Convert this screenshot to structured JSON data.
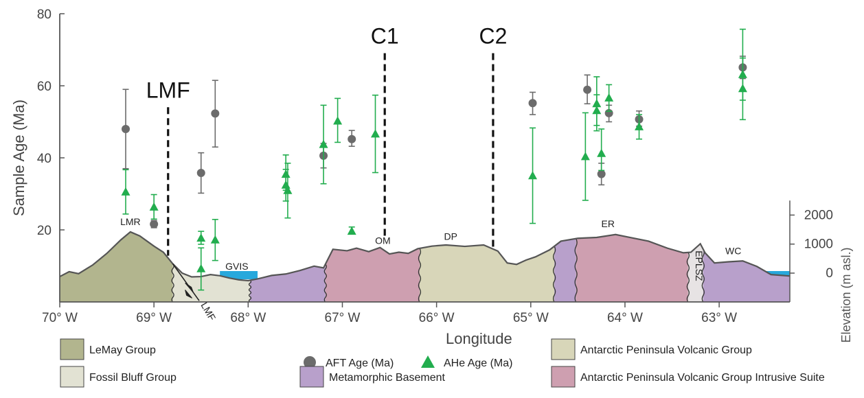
{
  "chart_data": {
    "type": "scatter",
    "xlabel": "Longitude",
    "ylabel": "Sample Age (Ma)",
    "y2label": "Elevation (m asl.)",
    "xlim": [
      -70.0,
      -62.25
    ],
    "ylim": [
      0,
      80
    ],
    "y2lim": [
      -1000,
      2500
    ],
    "x_ticks": [
      -70,
      -69,
      -68,
      -67,
      -66,
      -65,
      -64,
      -63
    ],
    "x_tick_labels": [
      "70° W",
      "69° W",
      "68° W",
      "67° W",
      "66° W",
      "65° W",
      "64° W",
      "63° W"
    ],
    "y_ticks": [
      20,
      40,
      60,
      80
    ],
    "y_tick_labels": [
      "20",
      "40",
      "60",
      "80"
    ],
    "y2_ticks": [
      0,
      1000,
      2000
    ],
    "y2_tick_labels": [
      "0",
      "1000",
      "2000"
    ],
    "grid": false,
    "series": [
      {
        "name": "AFT Age (Ma)",
        "marker": "circle",
        "color": "#6b6b6b",
        "points": [
          {
            "x": -69.3,
            "y": 48.0,
            "err": [
              37.0,
              59.0
            ]
          },
          {
            "x": -69.0,
            "y": 21.6,
            "err": [
              20.6,
              22.6
            ]
          },
          {
            "x": -68.5,
            "y": 35.8,
            "err": [
              30.2,
              41.4
            ]
          },
          {
            "x": -68.35,
            "y": 52.3,
            "err": [
              43.0,
              61.5
            ]
          },
          {
            "x": -67.2,
            "y": 40.6,
            "err": [
              37.2,
              44.0
            ]
          },
          {
            "x": -66.9,
            "y": 45.2,
            "err": [
              43.2,
              47.6
            ]
          },
          {
            "x": -64.98,
            "y": 55.2,
            "err": [
              52.0,
              58.2
            ]
          },
          {
            "x": -64.4,
            "y": 58.9,
            "err": [
              55.0,
              63.0
            ]
          },
          {
            "x": -64.25,
            "y": 35.5,
            "err": [
              32.5,
              38.5
            ]
          },
          {
            "x": -64.17,
            "y": 52.4,
            "err": [
              50.0,
              54.6
            ]
          },
          {
            "x": -63.85,
            "y": 50.7,
            "err": [
              48.8,
              53.0
            ]
          },
          {
            "x": -62.75,
            "y": 65.1,
            "err": [
              62.0,
              68.2
            ]
          }
        ]
      },
      {
        "name": "AHe Age (Ma)",
        "marker": "triangle",
        "color": "#22ad4e",
        "points": [
          {
            "x": -69.3,
            "y": 30.5,
            "err": [
              24.4,
              36.7
            ]
          },
          {
            "x": -69.0,
            "y": 26.3,
            "err": [
              23.0,
              29.8
            ]
          },
          {
            "x": -68.5,
            "y": 17.7,
            "err": [
              16.0,
              19.6
            ]
          },
          {
            "x": -68.5,
            "y": 9.2,
            "err": [
              3.3,
              15.0
            ]
          },
          {
            "x": -68.35,
            "y": 17.2,
            "err": [
              11.5,
              22.9
            ]
          },
          {
            "x": -67.6,
            "y": 35.4,
            "err": [
              31.0,
              40.8
            ]
          },
          {
            "x": -67.6,
            "y": 32.4,
            "err": [
              28.0,
              36.8
            ]
          },
          {
            "x": -67.58,
            "y": 30.9,
            "err": [
              23.3,
              38.5
            ]
          },
          {
            "x": -67.2,
            "y": 43.7,
            "err": [
              32.8,
              54.6
            ]
          },
          {
            "x": -67.05,
            "y": 50.2,
            "err": [
              44.3,
              56.5
            ]
          },
          {
            "x": -66.9,
            "y": 19.6,
            "err": [
              19.0,
              20.8
            ]
          },
          {
            "x": -66.65,
            "y": 46.6,
            "err": [
              35.9,
              57.4
            ]
          },
          {
            "x": -64.98,
            "y": 35.0,
            "err": [
              21.8,
              48.3
            ]
          },
          {
            "x": -64.42,
            "y": 40.3,
            "err": [
              28.2,
              52.5
            ]
          },
          {
            "x": -64.3,
            "y": 55.0,
            "err": [
              47.5,
              62.5
            ]
          },
          {
            "x": -64.3,
            "y": 53.1,
            "err": [
              49.0,
              57.5
            ]
          },
          {
            "x": -64.25,
            "y": 41.2,
            "err": [
              36.5,
              48.0
            ]
          },
          {
            "x": -64.17,
            "y": 56.6,
            "err": [
              52.9,
              60.3
            ]
          },
          {
            "x": -63.85,
            "y": 48.6,
            "err": [
              45.2,
              52.0
            ]
          },
          {
            "x": -62.75,
            "y": 63.1,
            "err": [
              56.0,
              75.7
            ]
          },
          {
            "x": -62.75,
            "y": 59.2,
            "err": [
              50.6,
              67.7
            ]
          }
        ]
      }
    ],
    "profile": {
      "topography": [
        [
          -70.0,
          -120
        ],
        [
          -69.9,
          50
        ],
        [
          -69.8,
          -20
        ],
        [
          -69.65,
          280
        ],
        [
          -69.5,
          680
        ],
        [
          -69.35,
          1150
        ],
        [
          -69.25,
          1420
        ],
        [
          -69.15,
          1280
        ],
        [
          -69.0,
          930
        ],
        [
          -68.9,
          720
        ],
        [
          -68.8,
          320
        ],
        [
          -68.7,
          0
        ],
        [
          -68.6,
          -130
        ],
        [
          -68.5,
          -120
        ],
        [
          -68.4,
          -50
        ],
        [
          -68.3,
          -90
        ],
        [
          -68.2,
          -170
        ],
        [
          -68.1,
          -230
        ],
        [
          -68.0,
          -260
        ],
        [
          -67.9,
          -200
        ],
        [
          -67.75,
          -80
        ],
        [
          -67.6,
          -30
        ],
        [
          -67.45,
          90
        ],
        [
          -67.3,
          240
        ],
        [
          -67.2,
          180
        ],
        [
          -67.1,
          820
        ],
        [
          -66.95,
          770
        ],
        [
          -66.85,
          860
        ],
        [
          -66.72,
          740
        ],
        [
          -66.6,
          880
        ],
        [
          -66.5,
          660
        ],
        [
          -66.4,
          720
        ],
        [
          -66.3,
          680
        ],
        [
          -66.2,
          840
        ],
        [
          -66.05,
          930
        ],
        [
          -65.9,
          970
        ],
        [
          -65.7,
          920
        ],
        [
          -65.5,
          970
        ],
        [
          -65.35,
          760
        ],
        [
          -65.25,
          350
        ],
        [
          -65.15,
          300
        ],
        [
          -65.05,
          450
        ],
        [
          -64.95,
          560
        ],
        [
          -64.8,
          800
        ],
        [
          -64.68,
          1100
        ],
        [
          -64.5,
          1200
        ],
        [
          -64.3,
          1230
        ],
        [
          -64.1,
          1330
        ],
        [
          -63.95,
          1230
        ],
        [
          -63.75,
          1100
        ],
        [
          -63.55,
          860
        ],
        [
          -63.38,
          700
        ],
        [
          -63.3,
          720
        ],
        [
          -63.2,
          1010
        ],
        [
          -63.15,
          700
        ],
        [
          -63.05,
          350
        ],
        [
          -62.9,
          390
        ],
        [
          -62.75,
          420
        ],
        [
          -62.6,
          230
        ],
        [
          -62.45,
          -50
        ],
        [
          -62.25,
          -100
        ]
      ],
      "base_elevation": -1000,
      "units": [
        {
          "name": "LeMay Group",
          "color": "#b2b58e",
          "x_range": [
            -70.0,
            -68.8
          ]
        },
        {
          "name": "Fossil Bluff Group",
          "color": "#e2e2d3",
          "x_range": [
            -68.8,
            -67.98
          ]
        },
        {
          "name": "Metamorphic Basement",
          "color": "#b8a0cb",
          "x_range": [
            -67.98,
            -67.18
          ]
        },
        {
          "name": "Antarctic Peninsula Volcanic Group Intrusive Suite",
          "color": "#ce9fb0",
          "x_range": [
            -67.18,
            -66.18
          ]
        },
        {
          "name": "Antarctic Peninsula Volcanic Group",
          "color": "#d8d6b9",
          "x_range": [
            -66.18,
            -64.75
          ]
        },
        {
          "name": "Metamorphic Basement",
          "color": "#b8a0cb",
          "x_range": [
            -64.75,
            -64.52
          ]
        },
        {
          "name": "Antarctic Peninsula Volcanic Group Intrusive Suite",
          "color": "#ce9fb0",
          "x_range": [
            -64.52,
            -63.33
          ]
        },
        {
          "name": "Antarctic Peninsula Volcanic Group",
          "color": "#e7e3e4",
          "x_range": [
            -63.33,
            -63.17
          ]
        },
        {
          "name": "Metamorphic Basement",
          "color": "#b8a0cb",
          "x_range": [
            -63.17,
            -62.25
          ]
        }
      ],
      "water": [
        {
          "x_range": [
            -68.3,
            -67.9
          ]
        },
        {
          "x_range": [
            -62.55,
            -62.25
          ]
        }
      ],
      "labels": [
        {
          "text": "LMR",
          "x": -69.25,
          "elev": 1650
        },
        {
          "text": "GVIS",
          "x": -68.12,
          "elev": 120
        },
        {
          "text": "OM",
          "x": -66.57,
          "elev": 1000
        },
        {
          "text": "DP",
          "x": -65.85,
          "elev": 1150
        },
        {
          "text": "ER",
          "x": -64.18,
          "elev": 1580
        },
        {
          "text": "WC",
          "x": -62.85,
          "elev": 650
        },
        {
          "text": "EPLSZ",
          "x": -63.25,
          "elev": 250
        }
      ]
    },
    "fault_lines": [
      {
        "label": "LMF",
        "x": -68.85,
        "y_top": 67,
        "elev_bottom": 600
      },
      {
        "label": "C1",
        "x": -66.55,
        "y_top": 82,
        "elev_bottom": 1200
      },
      {
        "label": "C2",
        "x": -65.4,
        "y_top": 82,
        "elev_bottom": 800
      }
    ],
    "fault_trace_label": "LMF"
  },
  "legend": {
    "items": [
      {
        "label": "LeMay Group",
        "color": "#b2b58e",
        "kind": "swatch"
      },
      {
        "label": "Fossil Bluff Group",
        "color": "#e2e2d3",
        "kind": "swatch"
      },
      {
        "label": "AFT Age (Ma)",
        "color": "#6b6b6b",
        "kind": "circle"
      },
      {
        "label": "AHe Age (Ma)",
        "color": "#22ad4e",
        "kind": "triangle"
      },
      {
        "label": "Metamorphic Basement",
        "color": "#b8a0cb",
        "kind": "swatch"
      },
      {
        "label": "Antarctic Peninsula Volcanic Group",
        "color": "#d8d6b9",
        "kind": "swatch"
      },
      {
        "label": "Antarctic Peninsula Volcanic Group Intrusive Suite",
        "color": "#ce9fb0",
        "kind": "swatch"
      }
    ]
  },
  "colors": {
    "water": "#27a8dc",
    "outline": "#555555",
    "axis": "#555555",
    "fault": "#111111"
  }
}
